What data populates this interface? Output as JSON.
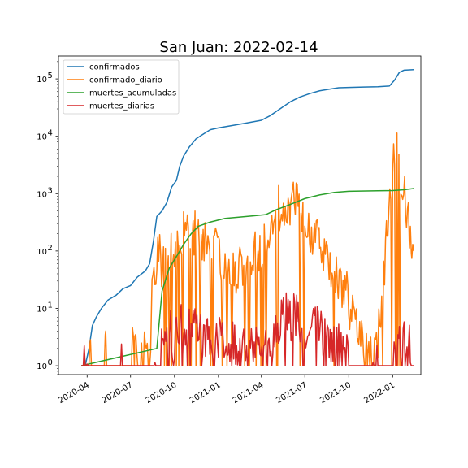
{
  "chart_data": {
    "type": "line",
    "title": "San Juan: 2022-02-14",
    "xlabel": "",
    "ylabel": "",
    "y_scale": "log",
    "ylim": [
      0.7,
      250000
    ],
    "xlim": [
      "2020-02-01",
      "2022-03-01"
    ],
    "grid": false,
    "legend_position": "top-left",
    "x_ticks": [
      "2020-04",
      "2020-07",
      "2020-10",
      "2021-01",
      "2021-04",
      "2021-07",
      "2021-10",
      "2022-01"
    ],
    "y_ticks": [
      {
        "value": 1,
        "label": "10",
        "exp": "0"
      },
      {
        "value": 10,
        "label": "10",
        "exp": "1"
      },
      {
        "value": 100,
        "label": "10",
        "exp": "2"
      },
      {
        "value": 1000,
        "label": "10",
        "exp": "3"
      },
      {
        "value": 10000,
        "label": "10",
        "exp": "4"
      },
      {
        "value": 100000,
        "label": "10",
        "exp": "5"
      }
    ],
    "series": [
      {
        "name": "confirmados",
        "color": "#1f77b4",
        "kind": "points",
        "points": [
          [
            "2020-03-20",
            1
          ],
          [
            "2020-03-28",
            1
          ],
          [
            "2020-04-05",
            2
          ],
          [
            "2020-04-12",
            5
          ],
          [
            "2020-04-20",
            7
          ],
          [
            "2020-05-01",
            10
          ],
          [
            "2020-05-15",
            14
          ],
          [
            "2020-06-01",
            17
          ],
          [
            "2020-06-15",
            22
          ],
          [
            "2020-07-01",
            25
          ],
          [
            "2020-07-15",
            35
          ],
          [
            "2020-08-01",
            45
          ],
          [
            "2020-08-10",
            60
          ],
          [
            "2020-08-18",
            150
          ],
          [
            "2020-08-25",
            400
          ],
          [
            "2020-09-05",
            500
          ],
          [
            "2020-09-15",
            700
          ],
          [
            "2020-09-25",
            1300
          ],
          [
            "2020-10-05",
            1700
          ],
          [
            "2020-10-12",
            3000
          ],
          [
            "2020-10-20",
            4500
          ],
          [
            "2020-11-01",
            6500
          ],
          [
            "2020-11-15",
            9000
          ],
          [
            "2020-12-01",
            11000
          ],
          [
            "2020-12-15",
            13000
          ],
          [
            "2021-01-01",
            14000
          ],
          [
            "2021-02-01",
            15500
          ],
          [
            "2021-03-01",
            17000
          ],
          [
            "2021-04-01",
            19000
          ],
          [
            "2021-04-20",
            23000
          ],
          [
            "2021-05-10",
            30000
          ],
          [
            "2021-06-01",
            40000
          ],
          [
            "2021-06-20",
            48000
          ],
          [
            "2021-07-10",
            55000
          ],
          [
            "2021-08-01",
            62000
          ],
          [
            "2021-08-20",
            66000
          ],
          [
            "2021-09-10",
            70000
          ],
          [
            "2021-10-01",
            71000
          ],
          [
            "2021-11-01",
            72000
          ],
          [
            "2021-12-01",
            73000
          ],
          [
            "2021-12-25",
            75000
          ],
          [
            "2022-01-05",
            95000
          ],
          [
            "2022-01-15",
            130000
          ],
          [
            "2022-01-25",
            142000
          ],
          [
            "2022-02-14",
            145000
          ]
        ]
      },
      {
        "name": "confirmado_diario",
        "color": "#ff7f0e",
        "kind": "daily",
        "daily_points": [
          [
            "2020-03-20",
            1
          ],
          [
            "2020-03-30",
            1
          ],
          [
            "2020-04-01",
            1
          ],
          [
            "2020-04-08",
            2
          ],
          [
            "2020-04-12",
            1
          ],
          [
            "2020-05-01",
            1
          ],
          [
            "2020-05-10",
            2
          ],
          [
            "2020-05-20",
            1
          ],
          [
            "2020-06-10",
            1
          ],
          [
            "2020-07-01",
            1
          ],
          [
            "2020-07-10",
            5
          ],
          [
            "2020-07-20",
            1
          ],
          [
            "2020-08-01",
            2
          ],
          [
            "2020-08-10",
            1
          ],
          [
            "2020-08-15",
            20
          ],
          [
            "2020-08-25",
            100
          ],
          [
            "2020-09-10",
            60
          ],
          [
            "2020-09-25",
            100
          ],
          [
            "2020-10-10",
            200
          ],
          [
            "2020-11-01",
            300
          ],
          [
            "2020-11-20",
            200
          ],
          [
            "2020-12-10",
            200
          ],
          [
            "2021-01-01",
            100
          ],
          [
            "2021-02-01",
            50
          ],
          [
            "2021-03-01",
            50
          ],
          [
            "2021-04-01",
            150
          ],
          [
            "2021-05-01",
            500
          ],
          [
            "2021-06-01",
            800
          ],
          [
            "2021-07-01",
            400
          ],
          [
            "2021-08-01",
            150
          ],
          [
            "2021-09-01",
            50
          ],
          [
            "2021-10-01",
            15
          ],
          [
            "2021-10-20",
            5
          ],
          [
            "2021-11-10",
            2
          ],
          [
            "2021-12-01",
            3
          ],
          [
            "2021-12-20",
            200
          ],
          [
            "2022-01-01",
            3000
          ],
          [
            "2022-01-10",
            6500
          ],
          [
            "2022-01-20",
            1500
          ],
          [
            "2022-02-01",
            500
          ],
          [
            "2022-02-10",
            200
          ],
          [
            "2022-02-14",
            100
          ]
        ]
      },
      {
        "name": "muertes_acumuladas",
        "color": "#2ca02c",
        "kind": "points",
        "points": [
          [
            "2020-03-20",
            1
          ],
          [
            "2020-08-25",
            2
          ],
          [
            "2020-09-05",
            20
          ],
          [
            "2020-09-20",
            50
          ],
          [
            "2020-10-05",
            80
          ],
          [
            "2020-10-20",
            130
          ],
          [
            "2020-11-05",
            200
          ],
          [
            "2020-11-20",
            270
          ],
          [
            "2020-12-15",
            320
          ],
          [
            "2021-01-15",
            370
          ],
          [
            "2021-02-15",
            390
          ],
          [
            "2021-03-15",
            410
          ],
          [
            "2021-04-10",
            430
          ],
          [
            "2021-05-01",
            520
          ],
          [
            "2021-06-01",
            650
          ],
          [
            "2021-07-01",
            820
          ],
          [
            "2021-08-01",
            950
          ],
          [
            "2021-09-01",
            1050
          ],
          [
            "2021-10-01",
            1100
          ],
          [
            "2021-12-01",
            1120
          ],
          [
            "2022-01-01",
            1130
          ],
          [
            "2022-01-25",
            1170
          ],
          [
            "2022-02-14",
            1230
          ]
        ]
      },
      {
        "name": "muertes_diarias",
        "color": "#d62728",
        "kind": "daily",
        "daily_points": [
          [
            "2020-03-20",
            1
          ],
          [
            "2020-08-25",
            1
          ],
          [
            "2020-09-05",
            3
          ],
          [
            "2020-10-01",
            4
          ],
          [
            "2020-10-20",
            6
          ],
          [
            "2020-11-15",
            6
          ],
          [
            "2020-12-10",
            4
          ],
          [
            "2021-01-15",
            3
          ],
          [
            "2021-02-15",
            2
          ],
          [
            "2021-03-15",
            2
          ],
          [
            "2021-04-15",
            4
          ],
          [
            "2021-05-15",
            8
          ],
          [
            "2021-06-15",
            7
          ],
          [
            "2021-07-15",
            6
          ],
          [
            "2021-08-15",
            3
          ],
          [
            "2021-09-15",
            2
          ],
          [
            "2021-10-15",
            1
          ],
          [
            "2021-11-15",
            1
          ],
          [
            "2021-12-15",
            1
          ],
          [
            "2022-01-15",
            2
          ],
          [
            "2022-02-01",
            4
          ],
          [
            "2022-02-14",
            1
          ]
        ]
      }
    ]
  }
}
